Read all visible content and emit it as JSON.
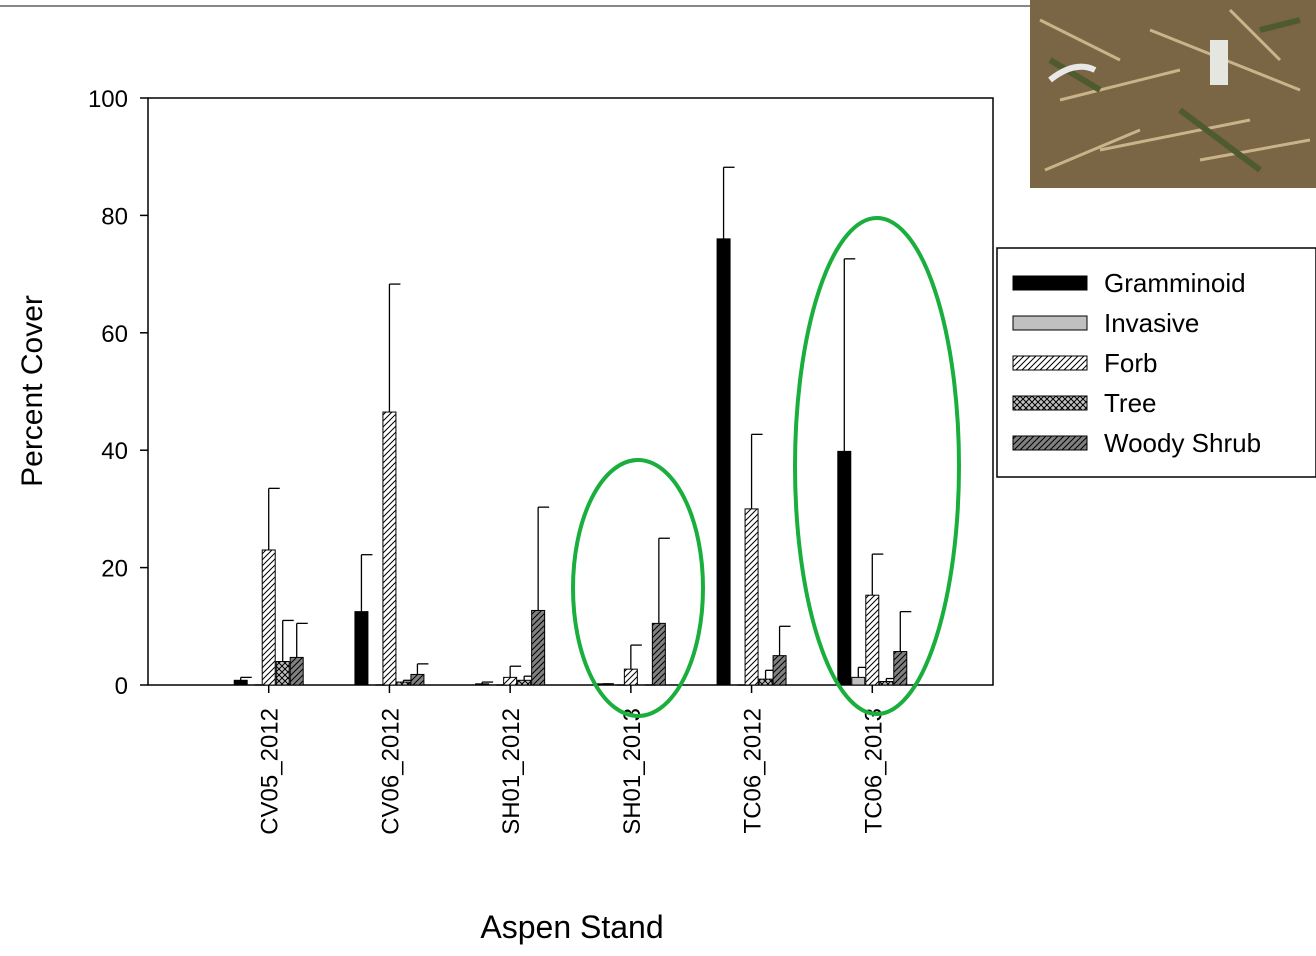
{
  "chart_data": {
    "type": "bar",
    "y_label": "Percent Cover",
    "x_label": "Aspen Stand",
    "categories": [
      "CV05_2012",
      "CV06_2012",
      "SH01_2012",
      "SH01_2013",
      "TC06_2012",
      "TC06_2013"
    ],
    "series": [
      {
        "name": "Gramminoid",
        "color": "#000000",
        "pattern": "solid",
        "values": [
          0.8,
          12.5,
          0.2,
          0.2,
          76,
          39.8
        ],
        "errors": [
          0.5,
          9.7,
          0.3,
          0,
          12.2,
          32.8
        ]
      },
      {
        "name": "Invasive",
        "color": "#c0c0c0",
        "pattern": "solid",
        "values": [
          0,
          0,
          0,
          0,
          0,
          1.3
        ],
        "errors": [
          0,
          0,
          0,
          0,
          0,
          1.7
        ]
      },
      {
        "name": "Forb",
        "color": "#ffffff",
        "pattern": "diagonal",
        "values": [
          23,
          46.5,
          1.3,
          2.7,
          30,
          15.3
        ],
        "errors": [
          10.5,
          21.8,
          1.9,
          4.1,
          12.7,
          7
        ]
      },
      {
        "name": "Tree",
        "color": "#c0c0c0",
        "pattern": "cross",
        "values": [
          4,
          0.5,
          0.8,
          0,
          1,
          0.6
        ],
        "errors": [
          7,
          0.3,
          0.7,
          0,
          1.5,
          0.5
        ]
      },
      {
        "name": "Woody Shrub",
        "color": "#808080",
        "pattern": "diagonal",
        "values": [
          4.7,
          1.8,
          12.7,
          10.5,
          5,
          5.7
        ],
        "errors": [
          5.8,
          1.8,
          17.6,
          14.5,
          5,
          6.8
        ]
      }
    ],
    "ylim": [
      0,
      100
    ],
    "yticks": [
      0,
      20,
      40,
      60,
      80,
      100
    ]
  }
}
